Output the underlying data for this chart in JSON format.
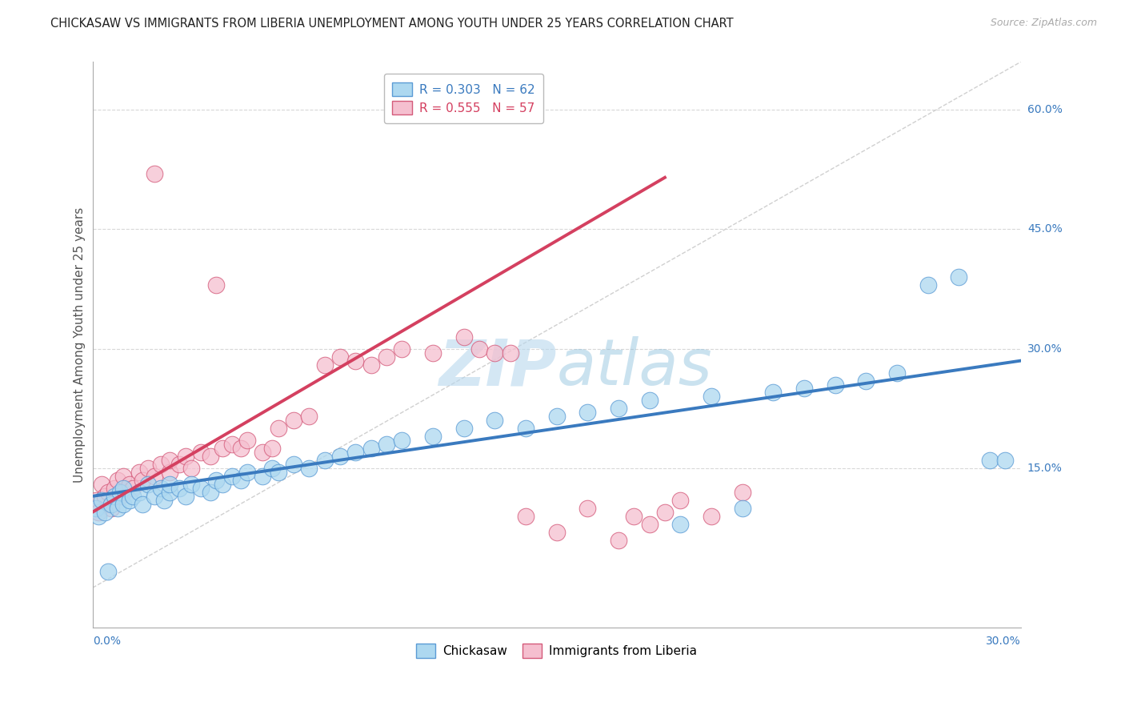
{
  "title": "CHICKASAW VS IMMIGRANTS FROM LIBERIA UNEMPLOYMENT AMONG YOUTH UNDER 25 YEARS CORRELATION CHART",
  "source": "Source: ZipAtlas.com",
  "ylabel": "Unemployment Among Youth under 25 years",
  "xmin": 0.0,
  "xmax": 0.3,
  "ymin": -0.05,
  "ymax": 0.66,
  "chickasaw_fill": "#add8f0",
  "chickasaw_edge": "#5b9bd5",
  "liberia_fill": "#f5bfcf",
  "liberia_edge": "#d45a7a",
  "chickasaw_line_color": "#3a7abf",
  "liberia_line_color": "#d44060",
  "diagonal_color": "#d0d0d0",
  "grid_color": "#d8d8d8",
  "r_chickasaw": 0.303,
  "n_chickasaw": 62,
  "r_liberia": 0.555,
  "n_liberia": 57,
  "watermark_zip": "ZIP",
  "watermark_atlas": "atlas",
  "right_axis_labels": [
    [
      0.6,
      "60.0%"
    ],
    [
      0.45,
      "45.0%"
    ],
    [
      0.3,
      "30.0%"
    ],
    [
      0.15,
      "15.0%"
    ]
  ],
  "chick_line_x0": 0.0,
  "chick_line_x1": 0.3,
  "chick_line_y0": 0.115,
  "chick_line_y1": 0.285,
  "lib_line_x0": 0.0,
  "lib_line_x1": 0.185,
  "lib_line_y0": 0.095,
  "lib_line_y1": 0.515,
  "chickasaw_pts_x": [
    0.001,
    0.002,
    0.003,
    0.004,
    0.005,
    0.006,
    0.007,
    0.008,
    0.009,
    0.01,
    0.01,
    0.012,
    0.013,
    0.015,
    0.016,
    0.018,
    0.02,
    0.022,
    0.023,
    0.025,
    0.025,
    0.028,
    0.03,
    0.032,
    0.035,
    0.038,
    0.04,
    0.042,
    0.045,
    0.048,
    0.05,
    0.055,
    0.058,
    0.06,
    0.065,
    0.07,
    0.075,
    0.08,
    0.085,
    0.09,
    0.095,
    0.1,
    0.11,
    0.12,
    0.13,
    0.14,
    0.15,
    0.16,
    0.17,
    0.18,
    0.19,
    0.2,
    0.21,
    0.22,
    0.23,
    0.24,
    0.25,
    0.26,
    0.27,
    0.28,
    0.29,
    0.295
  ],
  "chickasaw_pts_y": [
    0.1,
    0.09,
    0.11,
    0.095,
    0.02,
    0.105,
    0.115,
    0.1,
    0.12,
    0.125,
    0.105,
    0.11,
    0.115,
    0.12,
    0.105,
    0.13,
    0.115,
    0.125,
    0.11,
    0.12,
    0.13,
    0.125,
    0.115,
    0.13,
    0.125,
    0.12,
    0.135,
    0.13,
    0.14,
    0.135,
    0.145,
    0.14,
    0.15,
    0.145,
    0.155,
    0.15,
    0.16,
    0.165,
    0.17,
    0.175,
    0.18,
    0.185,
    0.19,
    0.2,
    0.21,
    0.2,
    0.215,
    0.22,
    0.225,
    0.235,
    0.08,
    0.24,
    0.1,
    0.245,
    0.25,
    0.255,
    0.26,
    0.27,
    0.38,
    0.39,
    0.16,
    0.16
  ],
  "liberia_pts_x": [
    0.001,
    0.002,
    0.003,
    0.004,
    0.005,
    0.006,
    0.007,
    0.008,
    0.009,
    0.01,
    0.01,
    0.012,
    0.013,
    0.015,
    0.016,
    0.018,
    0.02,
    0.02,
    0.022,
    0.025,
    0.025,
    0.028,
    0.03,
    0.032,
    0.035,
    0.038,
    0.04,
    0.042,
    0.045,
    0.048,
    0.05,
    0.055,
    0.058,
    0.06,
    0.065,
    0.07,
    0.075,
    0.08,
    0.085,
    0.09,
    0.095,
    0.1,
    0.11,
    0.12,
    0.125,
    0.13,
    0.135,
    0.14,
    0.15,
    0.16,
    0.17,
    0.175,
    0.18,
    0.185,
    0.19,
    0.2,
    0.21
  ],
  "liberia_pts_y": [
    0.11,
    0.095,
    0.13,
    0.115,
    0.12,
    0.1,
    0.125,
    0.135,
    0.115,
    0.12,
    0.14,
    0.13,
    0.125,
    0.145,
    0.135,
    0.15,
    0.52,
    0.14,
    0.155,
    0.145,
    0.16,
    0.155,
    0.165,
    0.15,
    0.17,
    0.165,
    0.38,
    0.175,
    0.18,
    0.175,
    0.185,
    0.17,
    0.175,
    0.2,
    0.21,
    0.215,
    0.28,
    0.29,
    0.285,
    0.28,
    0.29,
    0.3,
    0.295,
    0.315,
    0.3,
    0.295,
    0.295,
    0.09,
    0.07,
    0.1,
    0.06,
    0.09,
    0.08,
    0.095,
    0.11,
    0.09,
    0.12
  ]
}
